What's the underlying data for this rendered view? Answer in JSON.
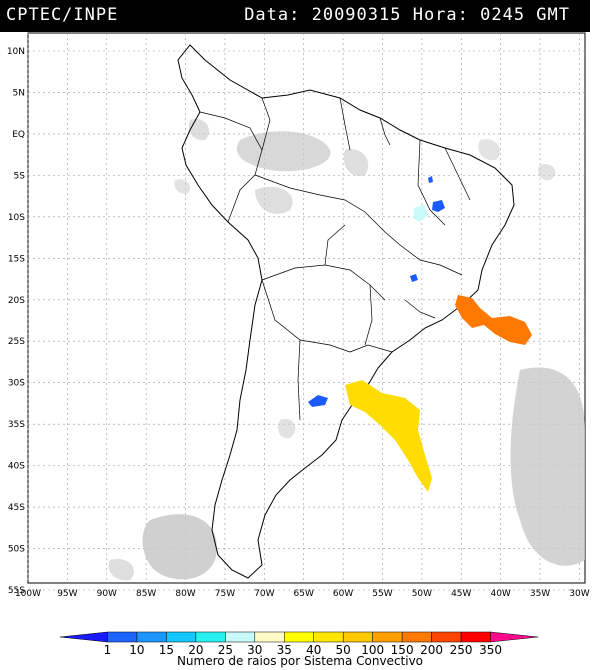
{
  "header": {
    "source": "CPTEC/INPE",
    "info": "Data: 20090315 Hora: 0245 GMT"
  },
  "map": {
    "lat_labels": [
      "10N",
      "5N",
      "EQ",
      "5S",
      "10S",
      "15S",
      "20S",
      "25S",
      "30S",
      "35S",
      "40S",
      "45S",
      "50S",
      "55S"
    ],
    "lon_labels": [
      "100W",
      "95W",
      "90W",
      "85W",
      "80W",
      "75W",
      "70W",
      "65W",
      "60W",
      "55W",
      "50W",
      "45W",
      "40W",
      "35W",
      "30W"
    ]
  },
  "colorbar": {
    "values": [
      "1",
      "10",
      "15",
      "20",
      "25",
      "30",
      "35",
      "40",
      "50",
      "100",
      "150",
      "200",
      "250",
      "350"
    ],
    "colors": [
      "#1a1aff",
      "#1e64ff",
      "#1e96ff",
      "#14c8ff",
      "#28f0f0",
      "#c8fafa",
      "#fffac8",
      "#ffff00",
      "#ffe600",
      "#ffc800",
      "#ffa000",
      "#ff7800",
      "#ff4600",
      "#ff0000",
      "#ff0a8c"
    ],
    "label": "Numero de raios por Sistema Convectivo"
  },
  "cells": [
    {
      "id": "lightning-cell-orange",
      "color": "#ff7800"
    },
    {
      "id": "lightning-cell-yellow",
      "color": "#ffdc00"
    },
    {
      "id": "lightning-cell-blue",
      "color": "#1a5aff"
    },
    {
      "id": "lightning-cell-cyan",
      "color": "#c8fafa"
    }
  ]
}
